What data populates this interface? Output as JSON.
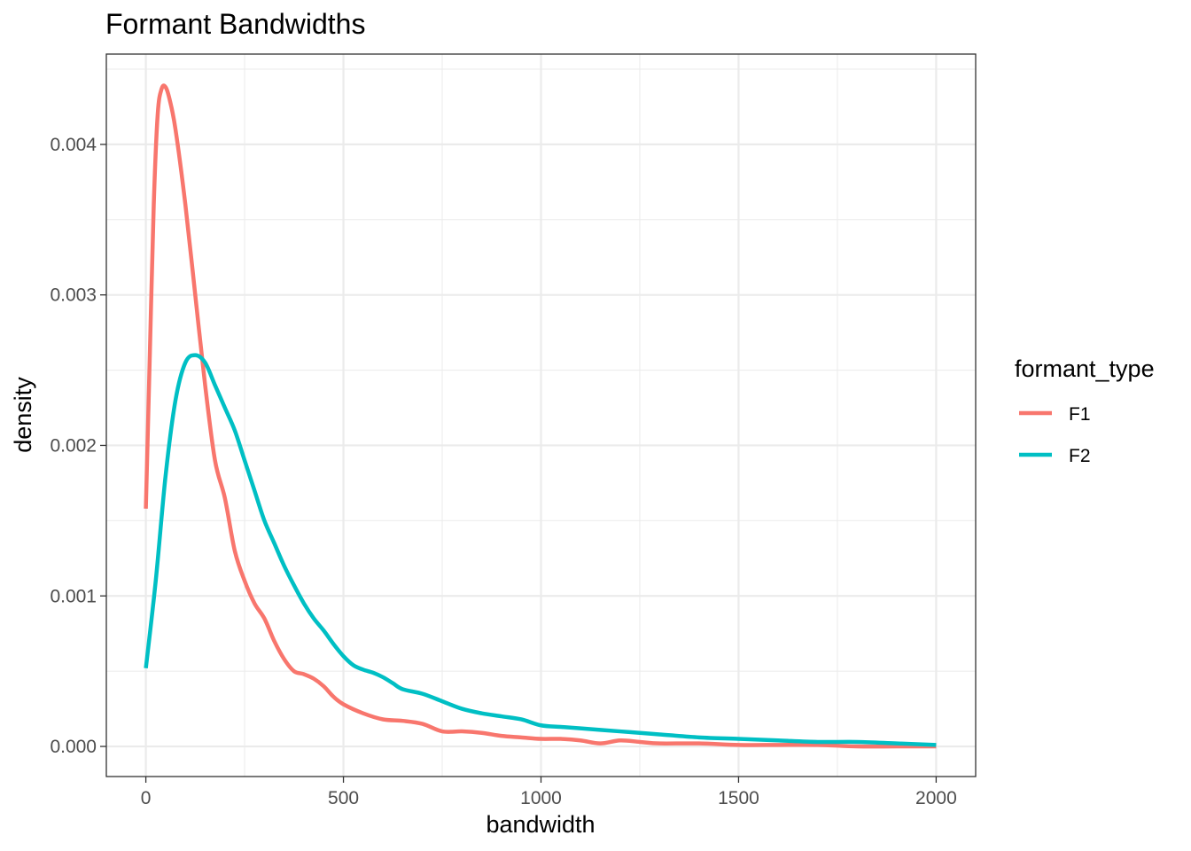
{
  "chart_data": {
    "type": "line",
    "title": "Formant Bandwidths",
    "xlabel": "bandwidth",
    "ylabel": "density",
    "xlim": [
      -100,
      2100
    ],
    "ylim": [
      -0.0002,
      0.0046
    ],
    "x_ticks": [
      0,
      500,
      1000,
      1500,
      2000
    ],
    "x_tick_labels": [
      "0",
      "500",
      "1000",
      "1500",
      "2000"
    ],
    "y_ticks": [
      0,
      0.001,
      0.002,
      0.003,
      0.004
    ],
    "y_tick_labels": [
      "0.000",
      "0.001",
      "0.002",
      "0.003",
      "0.004"
    ],
    "grid": true,
    "legend": {
      "title": "formant_type",
      "position": "right"
    },
    "series": [
      {
        "name": "F1",
        "color": "#F8766D",
        "points": [
          [
            0,
            0.00158
          ],
          [
            10,
            0.0026
          ],
          [
            20,
            0.0036
          ],
          [
            30,
            0.0042
          ],
          [
            40,
            0.00437
          ],
          [
            50,
            0.00438
          ],
          [
            60,
            0.0043
          ],
          [
            75,
            0.0041
          ],
          [
            100,
            0.0036
          ],
          [
            125,
            0.003
          ],
          [
            150,
            0.0024
          ],
          [
            175,
            0.0019
          ],
          [
            200,
            0.00165
          ],
          [
            225,
            0.0013
          ],
          [
            250,
            0.0011
          ],
          [
            275,
            0.00095
          ],
          [
            300,
            0.00085
          ],
          [
            325,
            0.0007
          ],
          [
            350,
            0.00058
          ],
          [
            375,
            0.0005
          ],
          [
            400,
            0.00048
          ],
          [
            425,
            0.00045
          ],
          [
            450,
            0.0004
          ],
          [
            475,
            0.00033
          ],
          [
            500,
            0.00028
          ],
          [
            550,
            0.00022
          ],
          [
            600,
            0.00018
          ],
          [
            650,
            0.00017
          ],
          [
            700,
            0.00015
          ],
          [
            750,
            0.0001
          ],
          [
            800,
            0.0001
          ],
          [
            850,
            9e-05
          ],
          [
            900,
            7e-05
          ],
          [
            950,
            6e-05
          ],
          [
            1000,
            5e-05
          ],
          [
            1050,
            5e-05
          ],
          [
            1100,
            4e-05
          ],
          [
            1150,
            2e-05
          ],
          [
            1200,
            4e-05
          ],
          [
            1250,
            3e-05
          ],
          [
            1300,
            2e-05
          ],
          [
            1400,
            2e-05
          ],
          [
            1500,
            1e-05
          ],
          [
            1600,
            1e-05
          ],
          [
            1700,
            1e-05
          ],
          [
            1800,
            0.0
          ],
          [
            1900,
            0.0
          ],
          [
            2000,
            0.0
          ]
        ]
      },
      {
        "name": "F2",
        "color": "#00BFC4",
        "points": [
          [
            0,
            0.00052
          ],
          [
            25,
            0.0011
          ],
          [
            50,
            0.0018
          ],
          [
            75,
            0.0023
          ],
          [
            100,
            0.00255
          ],
          [
            125,
            0.0026
          ],
          [
            150,
            0.00255
          ],
          [
            175,
            0.0024
          ],
          [
            200,
            0.00225
          ],
          [
            225,
            0.0021
          ],
          [
            250,
            0.0019
          ],
          [
            275,
            0.0017
          ],
          [
            300,
            0.0015
          ],
          [
            325,
            0.00135
          ],
          [
            350,
            0.0012
          ],
          [
            375,
            0.00107
          ],
          [
            400,
            0.00095
          ],
          [
            425,
            0.00085
          ],
          [
            450,
            0.00077
          ],
          [
            475,
            0.00068
          ],
          [
            500,
            0.0006
          ],
          [
            525,
            0.00054
          ],
          [
            550,
            0.00051
          ],
          [
            575,
            0.00049
          ],
          [
            600,
            0.00046
          ],
          [
            625,
            0.00042
          ],
          [
            650,
            0.00038
          ],
          [
            700,
            0.00035
          ],
          [
            750,
            0.0003
          ],
          [
            800,
            0.00025
          ],
          [
            850,
            0.00022
          ],
          [
            900,
            0.0002
          ],
          [
            950,
            0.00018
          ],
          [
            1000,
            0.00014
          ],
          [
            1050,
            0.00013
          ],
          [
            1100,
            0.00012
          ],
          [
            1150,
            0.00011
          ],
          [
            1200,
            0.0001
          ],
          [
            1250,
            9e-05
          ],
          [
            1300,
            8e-05
          ],
          [
            1400,
            6e-05
          ],
          [
            1500,
            5e-05
          ],
          [
            1600,
            4e-05
          ],
          [
            1700,
            3e-05
          ],
          [
            1800,
            3e-05
          ],
          [
            1900,
            2e-05
          ],
          [
            2000,
            1e-05
          ]
        ]
      }
    ]
  }
}
